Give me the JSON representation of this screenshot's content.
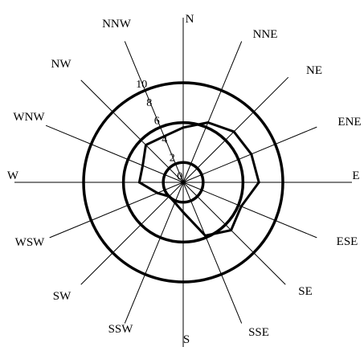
{
  "chart_data": {
    "type": "radar",
    "title": "",
    "directions": [
      "N",
      "NNE",
      "NE",
      "ENE",
      "E",
      "ESE",
      "SE",
      "SSE",
      "S",
      "SSW",
      "SW",
      "WSW",
      "W",
      "WNW",
      "NW",
      "NNW"
    ],
    "rlim": [
      0,
      10
    ],
    "rings": [
      2,
      6,
      10
    ],
    "tick_labels": [
      "0",
      "2",
      "4",
      "6",
      "8",
      "10"
    ],
    "series": [
      {
        "values": [
          5.5,
          6.5,
          7.2,
          7.4,
          7.6,
          6.3,
          6.8,
          5.8,
          3.0,
          2.2,
          2.0,
          2.8,
          4.4,
          4.4,
          5.3,
          5.0
        ],
        "color": "#000000"
      }
    ]
  }
}
